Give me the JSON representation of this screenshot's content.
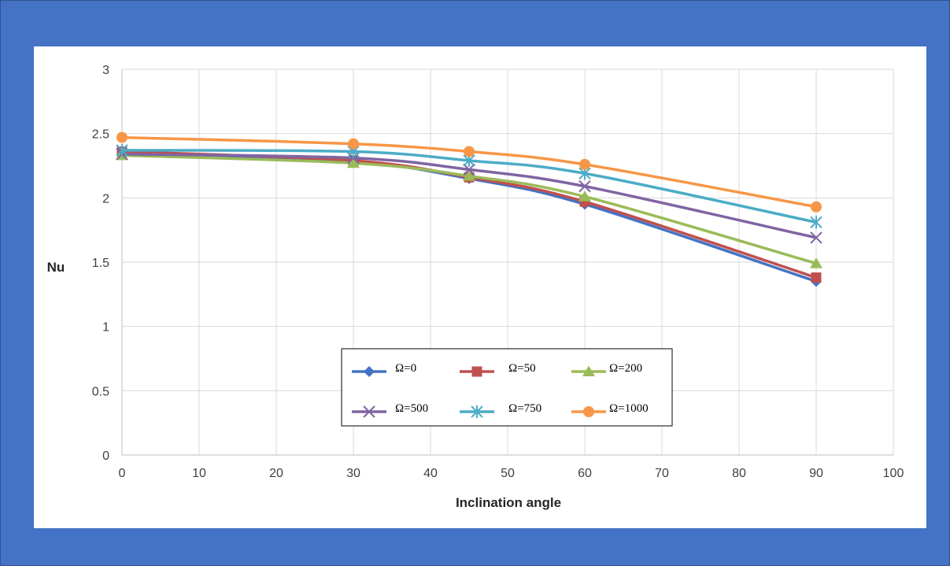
{
  "chart_data": {
    "type": "line",
    "title": "",
    "xlabel": "Inclination angle",
    "ylabel": "Nu",
    "xlim": [
      0,
      100
    ],
    "ylim": [
      0,
      3
    ],
    "xticks": [
      0,
      10,
      20,
      30,
      40,
      50,
      60,
      70,
      80,
      90,
      100
    ],
    "yticks": [
      "0",
      "0.5",
      "1",
      "1.5",
      "2",
      "2.5",
      "3"
    ],
    "grid": true,
    "legend_position": "bottom-center inside plot",
    "x": [
      0,
      30,
      45,
      60,
      90
    ],
    "series": [
      {
        "name": "Ω=0",
        "color": "#4472c4",
        "marker": "diamond",
        "values": [
          2.34,
          2.28,
          2.15,
          1.95,
          1.35
        ]
      },
      {
        "name": "Ω=50",
        "color": "#c0504d",
        "marker": "square",
        "values": [
          2.36,
          2.29,
          2.16,
          1.97,
          1.38
        ]
      },
      {
        "name": "Ω=200",
        "color": "#9bbb59",
        "marker": "triangle",
        "values": [
          2.33,
          2.27,
          2.17,
          2.01,
          1.49
        ]
      },
      {
        "name": "Ω=500",
        "color": "#8064a2",
        "marker": "x",
        "values": [
          2.34,
          2.31,
          2.22,
          2.09,
          1.69
        ]
      },
      {
        "name": "Ω=750",
        "color": "#4bacc6",
        "marker": "star",
        "values": [
          2.37,
          2.36,
          2.29,
          2.19,
          1.81
        ]
      },
      {
        "name": "Ω=1000",
        "color": "#f79646",
        "marker": "circle",
        "values": [
          2.47,
          2.42,
          2.36,
          2.26,
          1.93
        ]
      }
    ]
  }
}
